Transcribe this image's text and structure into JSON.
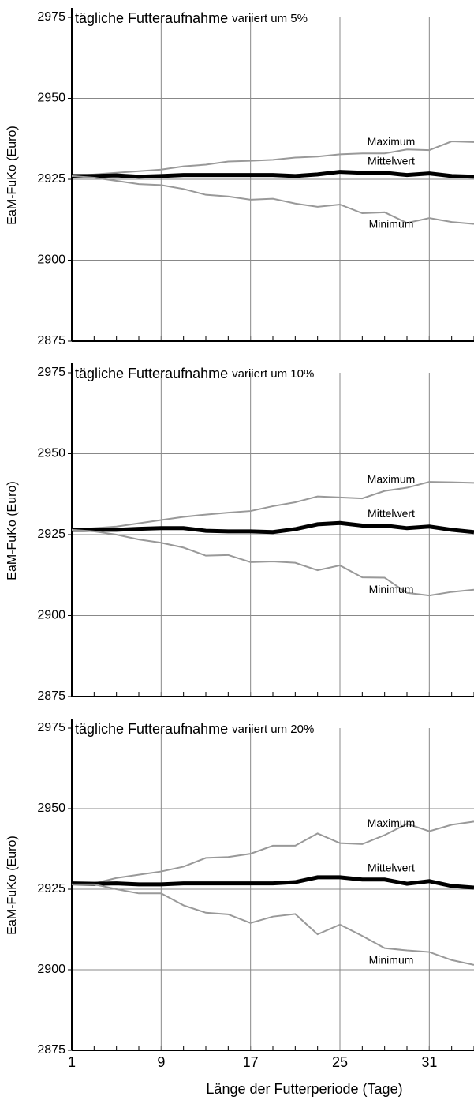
{
  "chart_data": [
    {
      "type": "line",
      "title": "tägliche Futteraufnahme",
      "subtitle": "variiert um 5%",
      "ylabel": "EaM-FuKo (Euro)",
      "ylim": [
        2875,
        2975
      ],
      "yticks": [
        2875,
        2900,
        2925,
        2950,
        2975
      ],
      "grid": true,
      "series": [
        {
          "name": "Maximum",
          "color": "#999999",
          "values": [
            2926,
            2926.5,
            2927,
            2927.5,
            2928,
            2929,
            2929.5,
            2930.5,
            2930.7,
            2931,
            2931.7,
            2932,
            2932.7,
            2933,
            2933,
            2934.2,
            2934,
            2936.7,
            2936.5
          ]
        },
        {
          "name": "Mittelwert",
          "color": "#000000",
          "values": [
            2926,
            2926,
            2926.2,
            2925.8,
            2926,
            2926.3,
            2926.3,
            2926.3,
            2926.3,
            2926.3,
            2926,
            2926.5,
            2927.3,
            2927,
            2927,
            2926.3,
            2926.8,
            2926,
            2925.8
          ]
        },
        {
          "name": "Minimum",
          "color": "#999999",
          "values": [
            2926,
            2925.5,
            2924.5,
            2923.5,
            2923.2,
            2922,
            2920.2,
            2919.7,
            2918.7,
            2919,
            2917.5,
            2916.5,
            2917.2,
            2914.5,
            2914.8,
            2911.5,
            2913,
            2911.8,
            2911.2
          ]
        }
      ]
    },
    {
      "type": "line",
      "title": "tägliche Futteraufnahme",
      "subtitle": "variiert um 10%",
      "ylabel": "EaM-FuKo (Euro)",
      "ylim": [
        2875,
        2975
      ],
      "yticks": [
        2875,
        2900,
        2925,
        2950,
        2975
      ],
      "grid": true,
      "series": [
        {
          "name": "Maximum",
          "color": "#999999",
          "values": [
            2926.5,
            2927,
            2927.5,
            2928.5,
            2929.5,
            2930.5,
            2931.2,
            2931.8,
            2932.3,
            2933.8,
            2935,
            2936.8,
            2936.5,
            2936.2,
            2938.5,
            2939.5,
            2941.3,
            2941.2,
            2941
          ]
        },
        {
          "name": "Mittelwert",
          "color": "#000000",
          "values": [
            2926.5,
            2926.5,
            2926.5,
            2926.8,
            2927,
            2927,
            2926.2,
            2926,
            2926,
            2925.8,
            2926.7,
            2928.2,
            2928.6,
            2927.8,
            2927.8,
            2927,
            2927.5,
            2926.5,
            2925.8
          ]
        },
        {
          "name": "Minimum",
          "color": "#999999",
          "values": [
            2926.5,
            2926,
            2925,
            2923.5,
            2922.5,
            2921,
            2918.5,
            2918.7,
            2916.5,
            2916.7,
            2916.3,
            2914,
            2915.5,
            2911.8,
            2911.7,
            2907,
            2906.2,
            2907.3,
            2908
          ]
        }
      ]
    },
    {
      "type": "line",
      "title": "tägliche Futteraufnahme",
      "subtitle": "variiert um 20%",
      "ylabel": "EaM-FuKo (Euro)",
      "xlabel": "Länge der Futterperiode (Tage)",
      "categories": [
        "1",
        null,
        null,
        null,
        "9",
        null,
        null,
        null,
        "17",
        null,
        null,
        null,
        "25",
        null,
        null,
        null,
        "31",
        null,
        null
      ],
      "ylim": [
        2875,
        2975
      ],
      "yticks": [
        2875,
        2900,
        2925,
        2950,
        2975
      ],
      "grid": true,
      "series": [
        {
          "name": "Maximum",
          "color": "#999999",
          "values": [
            2927,
            2926.8,
            2928.5,
            2929.5,
            2930.5,
            2932,
            2934.7,
            2935,
            2936,
            2938.5,
            2938.5,
            2942.3,
            2939.3,
            2939,
            2941.8,
            2945.3,
            2943,
            2945,
            2946
          ]
        },
        {
          "name": "Mittelwert",
          "color": "#000000",
          "values": [
            2926.8,
            2926.7,
            2926.8,
            2926.5,
            2926.5,
            2926.8,
            2926.8,
            2926.8,
            2926.8,
            2926.8,
            2927.2,
            2928.7,
            2928.7,
            2928,
            2928,
            2926.7,
            2927.5,
            2926,
            2925.5
          ]
        },
        {
          "name": "Minimum",
          "color": "#999999",
          "values": [
            2926.5,
            2926.5,
            2925,
            2923.7,
            2923.7,
            2920,
            2917.7,
            2917.2,
            2914.5,
            2916.5,
            2917.3,
            2911,
            2914,
            2910.5,
            2906.7,
            2906,
            2905.5,
            2903,
            2901.5
          ]
        }
      ]
    }
  ]
}
